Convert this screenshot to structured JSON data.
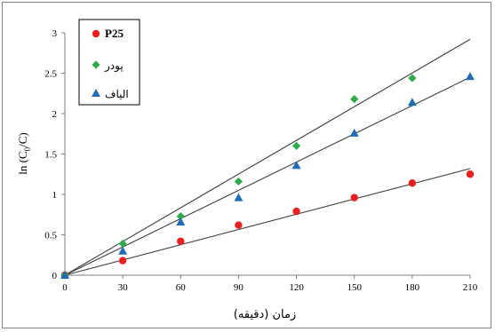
{
  "chart_data": {
    "type": "scatter",
    "xlabel": "زمان (دقیقه)",
    "ylabel_parts": [
      "ln (C",
      "0",
      "/C)"
    ],
    "xlim": [
      0,
      210
    ],
    "ylim": [
      0,
      3
    ],
    "xticks": [
      0,
      30,
      60,
      90,
      120,
      150,
      180,
      210
    ],
    "yticks": [
      0,
      0.5,
      1,
      1.5,
      2,
      2.5,
      3
    ],
    "xtick_labels": [
      "0",
      "30",
      "60",
      "90",
      "120",
      "150",
      "180",
      "210"
    ],
    "ytick_labels": [
      "0",
      "0.5",
      "1",
      "1.5",
      "2",
      "2.5",
      "3"
    ],
    "grid": false,
    "legend_position": "top-left",
    "series": [
      {
        "name": "P25",
        "marker": "circle",
        "color": "#e8211f",
        "x": [
          0,
          30,
          60,
          90,
          120,
          150,
          180,
          210
        ],
        "y": [
          0,
          0.18,
          0.42,
          0.62,
          0.79,
          0.96,
          1.14,
          1.25
        ],
        "trend_end": 1.32
      },
      {
        "name": "پودر",
        "marker": "diamond",
        "color": "#2eaa4a",
        "x": [
          0,
          30,
          60,
          90,
          120,
          150,
          180
        ],
        "y": [
          0,
          0.39,
          0.73,
          1.16,
          1.6,
          2.18,
          2.44
        ],
        "trend_end": 2.92
      },
      {
        "name": "الیاف",
        "marker": "triangle",
        "color": "#1f6db5",
        "x": [
          0,
          30,
          60,
          90,
          120,
          150,
          180,
          210
        ],
        "y": [
          0,
          0.3,
          0.66,
          0.96,
          1.36,
          1.76,
          2.14,
          2.46
        ],
        "trend_end": 2.45
      }
    ]
  }
}
